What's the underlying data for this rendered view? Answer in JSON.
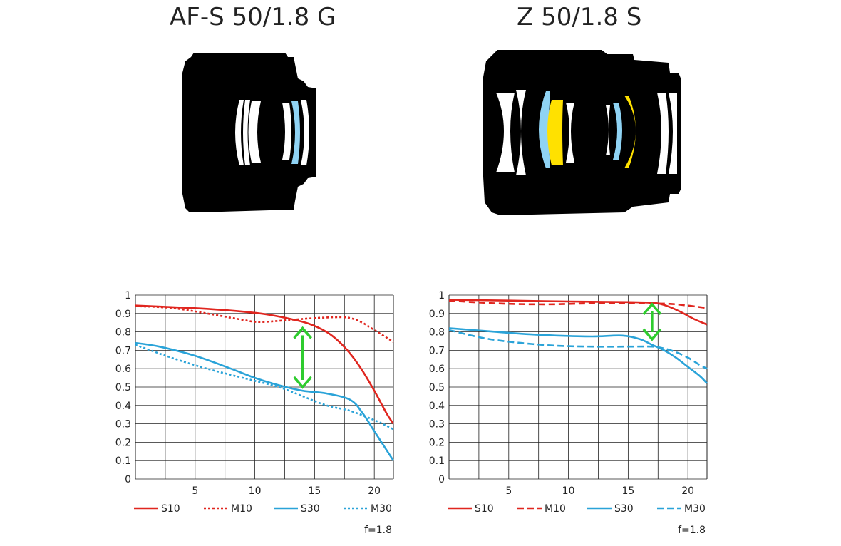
{
  "lenses": [
    {
      "title": "AF-S 50/1.8 G",
      "highlight_colors": [
        "#8fd3f4"
      ]
    },
    {
      "title": "Z 50/1.8 S",
      "highlight_colors": [
        "#8fd3f4",
        "#ffe100"
      ]
    }
  ],
  "colors": {
    "sagittal_red": "#e0261f",
    "sagittal_blue": "#2aa3d8",
    "arrow_green": "#2ecc2e",
    "grid": "#222222"
  },
  "chart_data": [
    {
      "type": "line",
      "xlim": [
        0,
        21.6
      ],
      "ylim": [
        0,
        1
      ],
      "xticks": [
        "5",
        "10",
        "15",
        "20"
      ],
      "yticks": [
        "0",
        "0.1",
        "0.2",
        "0.3",
        "0.4",
        "0.5",
        "0.6",
        "0.7",
        "0.8",
        "0.9",
        "1"
      ],
      "grid": true,
      "legend_position": "bottom",
      "note": "f=1.8",
      "series": [
        {
          "name": "S10",
          "color": "#e0261f",
          "style": "solid",
          "x": [
            0,
            3,
            6,
            9,
            11,
            13,
            14.5,
            16,
            17,
            18,
            19,
            20,
            21,
            21.6
          ],
          "y": [
            0.943,
            0.935,
            0.925,
            0.91,
            0.895,
            0.87,
            0.845,
            0.8,
            0.75,
            0.68,
            0.59,
            0.48,
            0.36,
            0.3
          ]
        },
        {
          "name": "M10",
          "color": "#e0261f",
          "style": "dotted",
          "x": [
            0,
            3,
            6,
            9,
            10,
            11,
            13,
            15,
            17,
            18,
            19,
            20,
            21,
            21.6
          ],
          "y": [
            0.94,
            0.93,
            0.9,
            0.865,
            0.855,
            0.855,
            0.865,
            0.875,
            0.88,
            0.875,
            0.85,
            0.81,
            0.77,
            0.745
          ]
        },
        {
          "name": "S30",
          "color": "#2aa3d8",
          "style": "solid",
          "x": [
            0,
            2,
            5,
            8,
            10,
            12,
            14,
            16,
            18,
            19,
            20,
            21,
            21.6
          ],
          "y": [
            0.74,
            0.72,
            0.67,
            0.6,
            0.55,
            0.51,
            0.48,
            0.465,
            0.43,
            0.36,
            0.26,
            0.16,
            0.1
          ]
        },
        {
          "name": "M30",
          "color": "#2aa3d8",
          "style": "dotted",
          "x": [
            0,
            3,
            6,
            9,
            12,
            14,
            16,
            18,
            20,
            21,
            21.6
          ],
          "y": [
            0.73,
            0.66,
            0.6,
            0.55,
            0.5,
            0.45,
            0.4,
            0.37,
            0.32,
            0.29,
            0.27
          ]
        }
      ],
      "annotation": {
        "type": "double-arrow",
        "color": "#2ecc2e",
        "x": 14,
        "y_from": 0.82,
        "y_to": 0.5
      }
    },
    {
      "type": "line",
      "xlim": [
        0,
        21.6
      ],
      "ylim": [
        0,
        1
      ],
      "xticks": [
        "5",
        "10",
        "15",
        "20"
      ],
      "yticks": [
        "0",
        "0.1",
        "0.2",
        "0.3",
        "0.4",
        "0.5",
        "0.6",
        "0.7",
        "0.8",
        "0.9",
        "1"
      ],
      "grid": true,
      "legend_position": "bottom",
      "note": "f=1.8",
      "series": [
        {
          "name": "S10",
          "color": "#e0261f",
          "style": "solid",
          "x": [
            0,
            5,
            10,
            15,
            16.5,
            17.5,
            18.5,
            19.5,
            20.5,
            21.6
          ],
          "y": [
            0.975,
            0.97,
            0.965,
            0.962,
            0.96,
            0.955,
            0.935,
            0.905,
            0.87,
            0.84
          ]
        },
        {
          "name": "M10",
          "color": "#e0261f",
          "style": "dashed",
          "x": [
            0,
            4,
            8,
            12,
            15,
            17,
            19,
            21.6
          ],
          "y": [
            0.97,
            0.955,
            0.95,
            0.955,
            0.955,
            0.955,
            0.95,
            0.93
          ]
        },
        {
          "name": "S30",
          "color": "#2aa3d8",
          "style": "solid",
          "x": [
            0,
            3,
            6,
            9,
            12,
            14.5,
            16,
            17,
            18,
            19,
            20,
            21,
            21.6
          ],
          "y": [
            0.82,
            0.805,
            0.79,
            0.78,
            0.775,
            0.78,
            0.76,
            0.73,
            0.7,
            0.66,
            0.61,
            0.56,
            0.52
          ]
        },
        {
          "name": "M30",
          "color": "#2aa3d8",
          "style": "dashed",
          "x": [
            0,
            3,
            6,
            9,
            12,
            15,
            17,
            18,
            19,
            20,
            21,
            21.6
          ],
          "y": [
            0.81,
            0.765,
            0.74,
            0.725,
            0.72,
            0.72,
            0.72,
            0.71,
            0.69,
            0.66,
            0.62,
            0.6
          ]
        }
      ],
      "annotation": {
        "type": "double-arrow",
        "color": "#2ecc2e",
        "x": 17,
        "y_from": 0.95,
        "y_to": 0.76
      }
    }
  ]
}
